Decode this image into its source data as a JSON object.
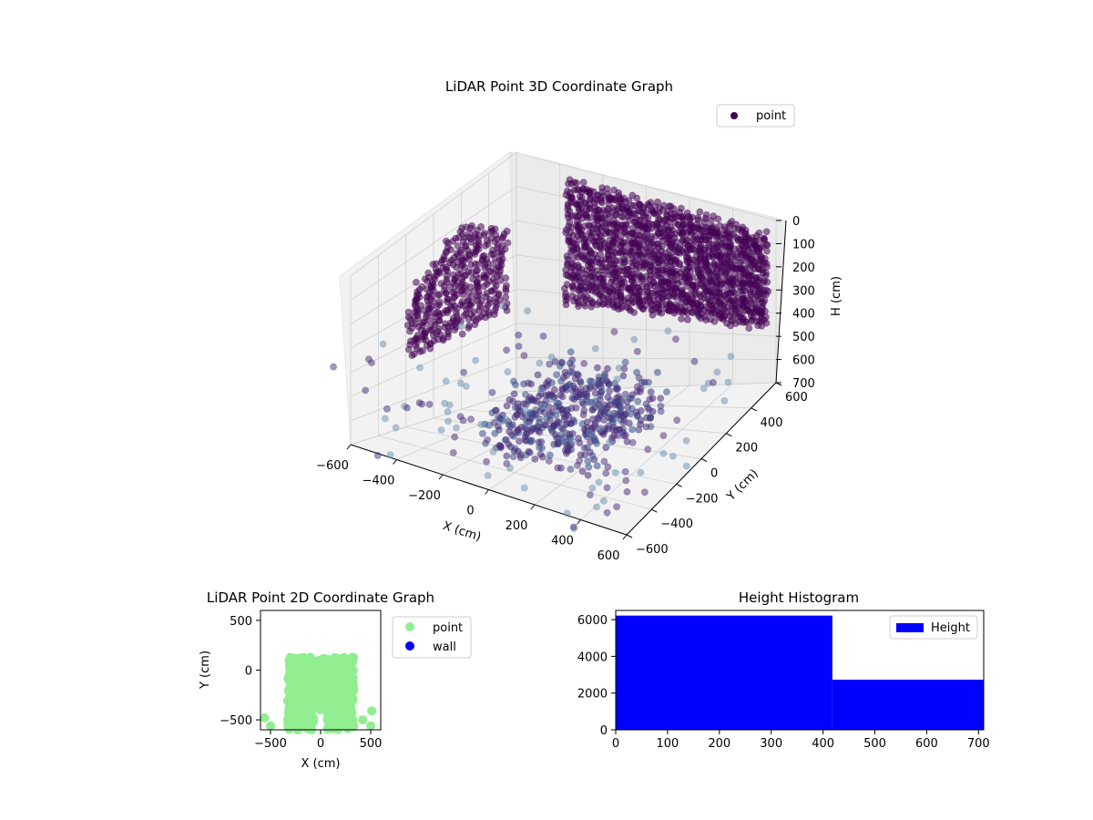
{
  "chart_data": [
    {
      "type": "scatter",
      "projection": "3d",
      "title": "LiDAR Point 3D Coordinate Graph",
      "xlabel": "X (cm)",
      "ylabel": "Y (cm)",
      "zlabel": "H (cm)",
      "xlim": [
        -600,
        600
      ],
      "ylim": [
        -600,
        600
      ],
      "zlim": [
        700,
        0
      ],
      "xticks": [
        "−600",
        "−400",
        "−200",
        "0",
        "200",
        "400",
        "600"
      ],
      "yticks": [
        "−600",
        "−400",
        "−200",
        "0",
        "200",
        "400",
        "600"
      ],
      "zticks": [
        "0",
        "100",
        "200",
        "300",
        "400",
        "500",
        "600",
        "700"
      ],
      "grid": true,
      "legend": {
        "placement": "upper-right",
        "entries": [
          "point"
        ]
      },
      "series": [
        {
          "name": "point",
          "color": "#440154",
          "colormap": "viridis",
          "groups": [
            {
              "part": "back wall rows",
              "x": [
                -300,
                600
              ],
              "y": [
                450,
                550
              ],
              "z": [
                0,
                400
              ]
            },
            {
              "part": "left wall rows",
              "x": [
                -580,
                -250
              ],
              "y": [
                -300,
                500
              ],
              "z": [
                0,
                400
              ]
            },
            {
              "part": "floor cluster",
              "x": [
                -250,
                300
              ],
              "y": [
                -400,
                300
              ],
              "z": [
                450,
                700
              ]
            }
          ]
        }
      ]
    },
    {
      "type": "scatter",
      "title": "LiDAR Point 2D Coordinate Graph",
      "xlabel": "X (cm)",
      "ylabel": "Y (cm)",
      "xlim": [
        -600,
        600
      ],
      "ylim": [
        -600,
        600
      ],
      "xticks": [
        "−500",
        "0",
        "500"
      ],
      "yticks": [
        "−500",
        "0",
        "500"
      ],
      "legend": {
        "placement": "outside-right",
        "entries": [
          "point",
          "wall"
        ]
      },
      "series": [
        {
          "name": "point",
          "color": "#90ee90",
          "region": {
            "x": [
              -560,
              540
            ],
            "y": [
              -600,
              130
            ]
          }
        },
        {
          "name": "wall",
          "color": "#0000ff",
          "points": []
        }
      ]
    },
    {
      "type": "bar",
      "subtype": "histogram",
      "title": "Height Histogram",
      "xlim": [
        0,
        710
      ],
      "ylim": [
        0,
        6500
      ],
      "xticks": [
        "0",
        "100",
        "200",
        "300",
        "400",
        "500",
        "600",
        "700"
      ],
      "yticks": [
        "0",
        "2000",
        "4000",
        "6000"
      ],
      "legend": {
        "placement": "upper-right",
        "entries": [
          "Height"
        ]
      },
      "series": [
        {
          "name": "Height",
          "color": "#0000ff",
          "bins": [
            {
              "start": 0,
              "end": 418,
              "count": 6220
            },
            {
              "start": 418,
              "end": 710,
              "count": 2730
            }
          ]
        }
      ]
    }
  ]
}
